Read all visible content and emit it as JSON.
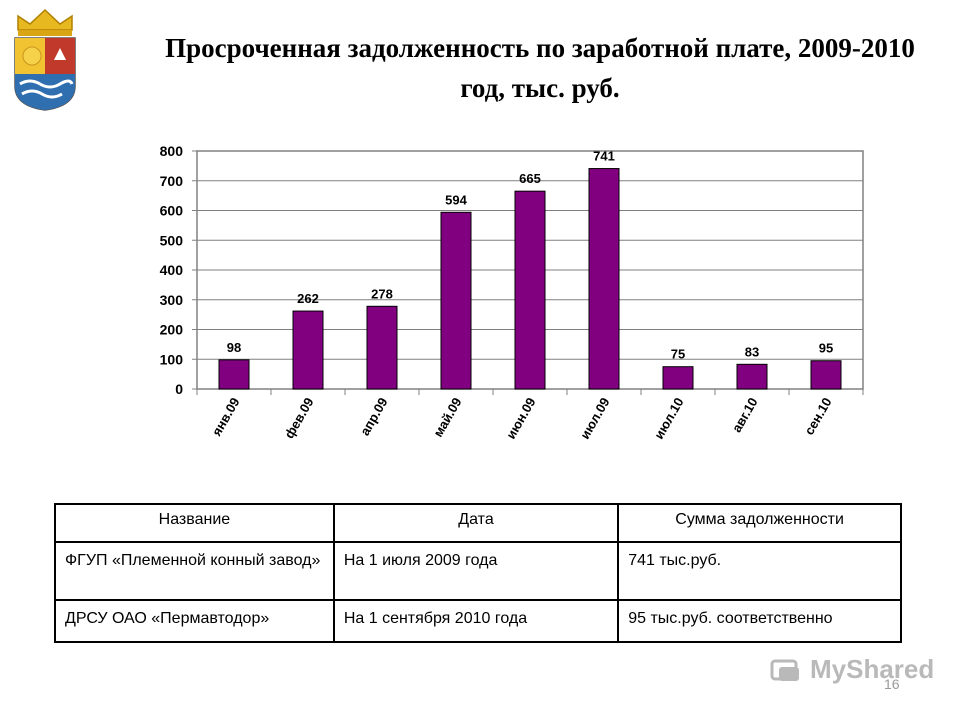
{
  "slide": {
    "title": "Просроченная задолженность по заработной плате, 2009-2010 год, тыс. руб.",
    "page_number": "16"
  },
  "emblem": {
    "icon": "coat-of-arms-icon"
  },
  "watermark": {
    "text": "MyShared",
    "icon": "myshared-logo-icon"
  },
  "chart_data": {
    "type": "bar",
    "categories": [
      "янв.09",
      "фев.09",
      "апр.09",
      "май.09",
      "июн.09",
      "июл.09",
      "июл.10",
      "авг.10",
      "сен.10"
    ],
    "values": [
      98,
      262,
      278,
      594,
      665,
      741,
      75,
      83,
      95
    ],
    "data_labels": [
      "98",
      "262",
      "278",
      "594",
      "665",
      "741",
      "75",
      "83",
      "95"
    ],
    "ylim": [
      0,
      800
    ],
    "yticks": [
      0,
      100,
      200,
      300,
      400,
      500,
      600,
      700,
      800
    ],
    "grid": true,
    "legend": false,
    "bar_color": "#800080"
  },
  "table": {
    "headers": [
      "Название",
      "Дата",
      "Сумма задолженности"
    ],
    "rows": [
      [
        "ФГУП «Племенной конный завод»",
        "На 1 июля 2009 года",
        "741 тыс.руб."
      ],
      [
        "ДРСУ ОАО «Пермавтодор»",
        "На 1 сентября 2010 года",
        "95 тыс.руб. соответственно"
      ]
    ]
  }
}
